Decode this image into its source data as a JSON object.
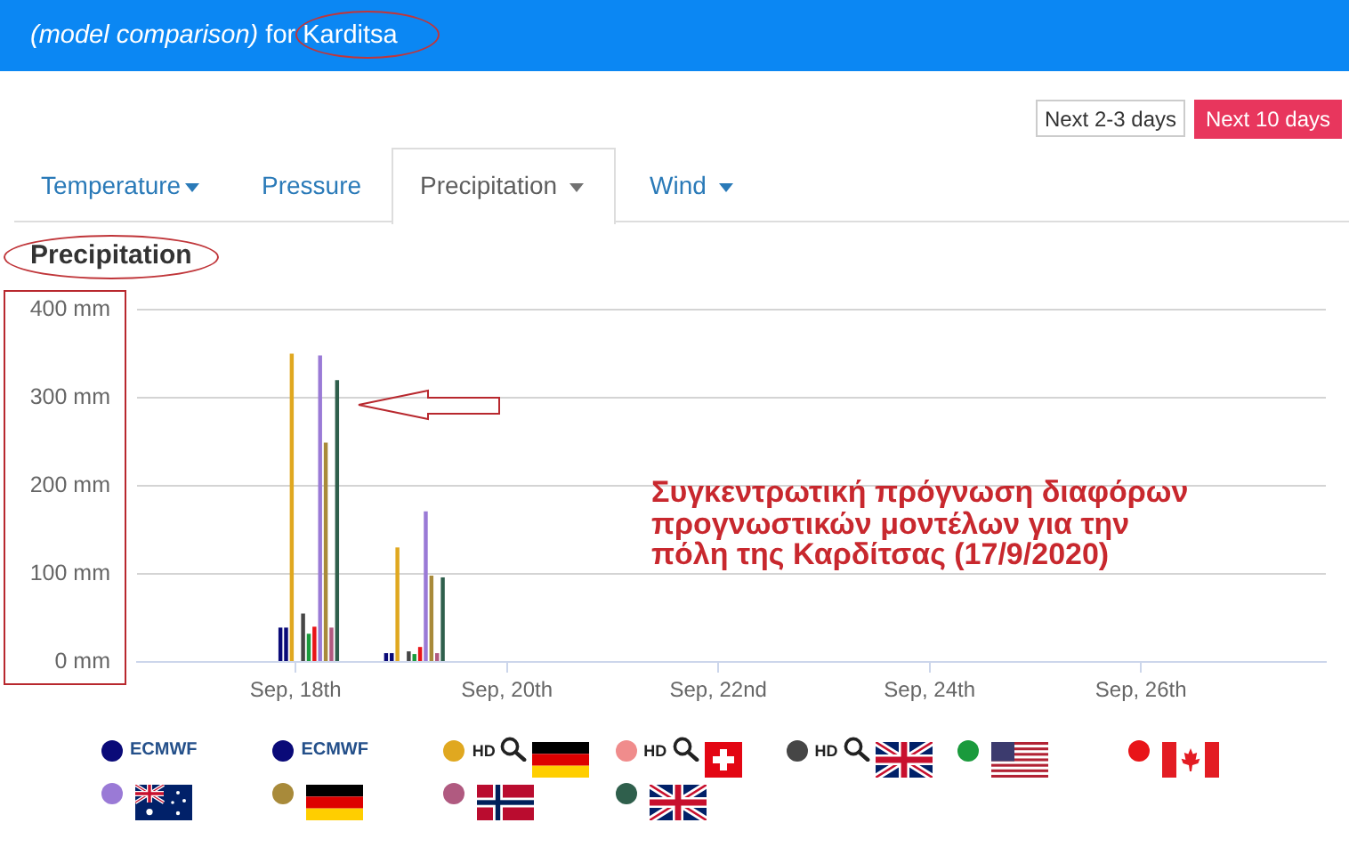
{
  "chart_data": {
    "type": "bar",
    "title": "(model comparison) for Karditsa",
    "subtitle": "Precipitation",
    "annotations": [
      "Next 2-3 days",
      "Next 10 days",
      "Temperature",
      "Pressure",
      "Precipitation",
      "Wind",
      "Συγκεντρωτική πρόγνωση διαφόρων προγνωστικών μοντέλων για την πόλη της Καρδίτσας (17/9/2020)"
    ],
    "x": [
      "--09-18T03:00",
      "--09-19T03:00"
    ],
    "xlim": [
      "--09-16T12:00",
      "--09-27T18:00"
    ],
    "xticks": [
      {
        "value": "--09-18",
        "label": "Sep, 18th"
      },
      {
        "value": "--09-20",
        "label": "Sep, 20th"
      },
      {
        "value": "--09-22",
        "label": "Sep, 22nd"
      },
      {
        "value": "--09-24",
        "label": "Sep, 24th"
      },
      {
        "value": "--09-26",
        "label": "Sep, 26th"
      }
    ],
    "ylim": [
      0,
      400
    ],
    "yticks": [
      {
        "value": 0,
        "label": "0 mm"
      },
      {
        "value": 100,
        "label": "100 mm"
      },
      {
        "value": 200,
        "label": "200 mm"
      },
      {
        "value": 300,
        "label": "300 mm"
      },
      {
        "value": 400,
        "label": "400 mm"
      }
    ],
    "grid": "y",
    "legend": "bottom",
    "series": [
      {
        "name": "ECMWF",
        "color": "#0a0a78",
        "values": [
          39,
          10
        ]
      },
      {
        "name": "ECMWF",
        "color": "#0a0a78",
        "values": [
          39,
          10
        ]
      },
      {
        "name": "HD",
        "color": "#e0a820",
        "values": [
          350,
          130
        ]
      },
      {
        "name": "HD",
        "color": "#f08c8c",
        "values": [
          null,
          null
        ]
      },
      {
        "name": "HD",
        "color": "#464646",
        "values": [
          55,
          12
        ]
      },
      {
        "color": "#1a9a3c",
        "values": [
          32,
          9
        ]
      },
      {
        "color": "#e81418",
        "values": [
          40,
          17
        ]
      },
      {
        "color": "#9a7ad6",
        "values": [
          348,
          171
        ]
      },
      {
        "color": "#a88a3a",
        "values": [
          249,
          98
        ]
      },
      {
        "color": "#b05a80",
        "values": [
          39,
          10
        ]
      },
      {
        "color": "#2f5f4c",
        "values": [
          320,
          96
        ]
      }
    ]
  }
}
